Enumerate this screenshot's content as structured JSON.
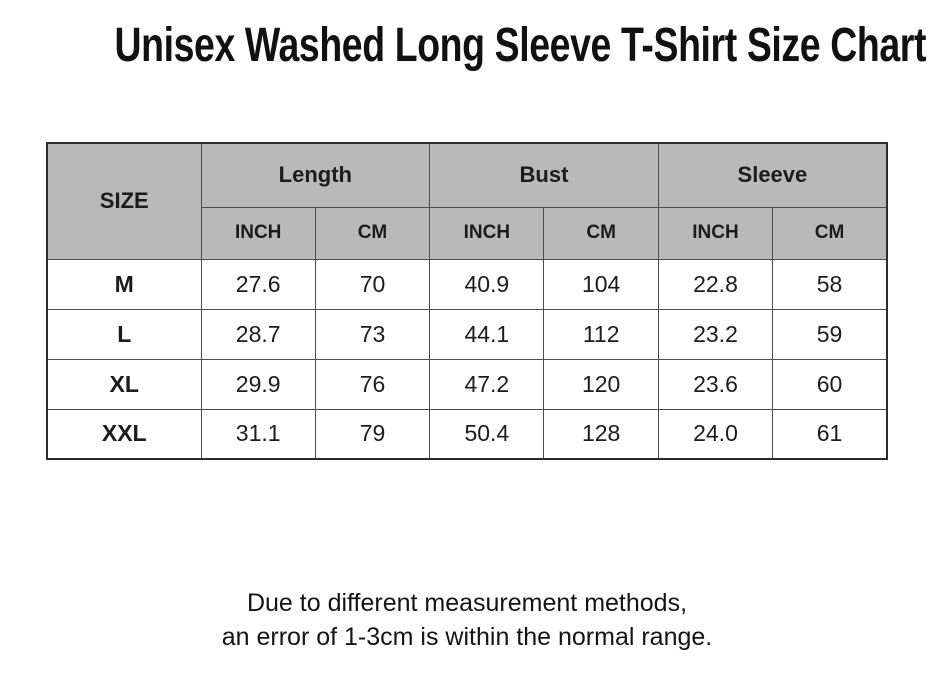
{
  "page": {
    "footer_line1": "Due to different measurement methods,",
    "footer_line2": "an error of 1-3cm is within the normal range."
  },
  "chart_data": {
    "type": "table",
    "title": "Unisex Washed Long Sleeve T-Shirt Size Chart",
    "size_column_header": "SIZE",
    "column_groups": [
      "Length",
      "Bust",
      "Sleeve"
    ],
    "unit_headers": [
      "INCH",
      "CM",
      "INCH",
      "CM",
      "INCH",
      "CM"
    ],
    "rows": [
      {
        "size": "M",
        "values": [
          "27.6",
          "70",
          "40.9",
          "104",
          "22.8",
          "58"
        ]
      },
      {
        "size": "L",
        "values": [
          "28.7",
          "73",
          "44.1",
          "112",
          "23.2",
          "59"
        ]
      },
      {
        "size": "XL",
        "values": [
          "29.9",
          "76",
          "47.2",
          "120",
          "23.6",
          "60"
        ]
      },
      {
        "size": "XXL",
        "values": [
          "31.1",
          "79",
          "50.4",
          "128",
          "24.0",
          "61"
        ]
      }
    ]
  },
  "colors": {
    "background": "#ffffff",
    "header_bg": "#b9b9b9",
    "outer_border": "#2d2d2d",
    "grid_line": "#4d4d4d",
    "text": "#1c1c1c"
  }
}
